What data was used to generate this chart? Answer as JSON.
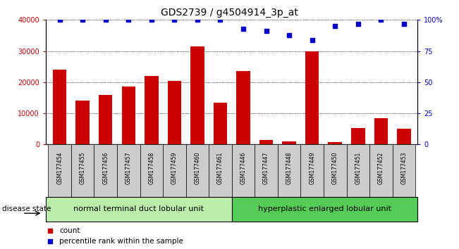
{
  "title": "GDS2739 / g4504914_3p_at",
  "categories": [
    "GSM177454",
    "GSM177455",
    "GSM177456",
    "GSM177457",
    "GSM177458",
    "GSM177459",
    "GSM177460",
    "GSM177461",
    "GSM177446",
    "GSM177447",
    "GSM177448",
    "GSM177449",
    "GSM177450",
    "GSM177451",
    "GSM177452",
    "GSM177453"
  ],
  "counts": [
    24000,
    14000,
    16000,
    18500,
    22000,
    20500,
    31500,
    13500,
    23500,
    1500,
    1000,
    30000,
    700,
    5200,
    8500,
    5000
  ],
  "percentiles": [
    100,
    100,
    100,
    100,
    100,
    100,
    100,
    100,
    93,
    91,
    88,
    84,
    95,
    97,
    100,
    97
  ],
  "group1_label": "normal terminal duct lobular unit",
  "group2_label": "hyperplastic enlarged lobular unit",
  "group1_count": 8,
  "group2_count": 8,
  "bar_color": "#cc0000",
  "dot_color": "#0000cc",
  "group1_bg": "#bbeeaa",
  "group2_bg": "#55cc55",
  "xlabels_bg": "#cccccc",
  "ylim_left": [
    0,
    40000
  ],
  "ylim_right": [
    0,
    100
  ],
  "yticks_left": [
    0,
    10000,
    20000,
    30000,
    40000
  ],
  "yticks_right": [
    0,
    25,
    50,
    75,
    100
  ],
  "ytick_labels_left": [
    "0",
    "10000",
    "20000",
    "30000",
    "40000"
  ],
  "ytick_labels_right": [
    "0",
    "25",
    "50",
    "75",
    "100%"
  ],
  "disease_state_label": "disease state",
  "legend_count_label": "count",
  "legend_pct_label": "percentile rank within the sample",
  "bar_width": 0.6
}
